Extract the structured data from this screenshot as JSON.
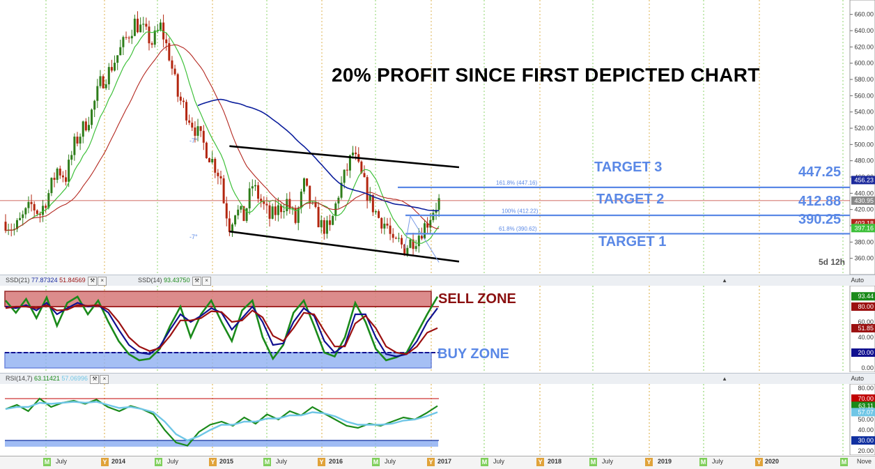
{
  "annotations": {
    "headline": "20% PROFIT SINCE FIRST DEPICTED CHART",
    "target3": "TARGET 3",
    "target2": "TARGET 2",
    "target1": "TARGET 1",
    "level3": "447.25",
    "level2": "412.88",
    "level1": "390.25",
    "fib3": "161.8% (447.16)",
    "fib2": "100% (412.22)",
    "fib1": "61.8% (390.62)",
    "angle_top": "-7°",
    "angle_bottom": "-7°",
    "timeframe": "5d 12h",
    "sell_zone": "SELL ZONE",
    "buy_zone": "BUY ZONE"
  },
  "panels": {
    "ssd21_label": "SSD(21)",
    "ssd21_v1": "77.87324",
    "ssd21_v2": "51.84569",
    "ssd14_label": "SSD(14)",
    "ssd14_v1": "93.43750",
    "rsi_label": "RSI(14,7)",
    "rsi_v1": "63.11421",
    "rsi_v2": "57.06996",
    "auto": "Auto"
  },
  "colors": {
    "candle_up": "#2e7d1a",
    "candle_down": "#b3260f",
    "ma_blue": "#0b1e9c",
    "ma_green": "#3ec03a",
    "ma_red": "#b3261e",
    "target_line": "#5a88e6",
    "target_text": "#5a88e6",
    "channel": "#000000",
    "sell_zone_fill": "#d98080",
    "buy_zone_fill": "#8fb0f2",
    "ssd_green": "#1a8a1a",
    "ssd_blue": "#10108f",
    "ssd_red": "#9b1010",
    "rsi_green": "#1a8a1a",
    "rsi_light": "#6fc6e6"
  },
  "chart_data": [
    {
      "type": "candlestick",
      "title": "",
      "xlabel": "",
      "ylabel": "",
      "ylim": [
        340,
        670
      ],
      "y_ticks": [
        360,
        380,
        400,
        420,
        440,
        460,
        480,
        500,
        520,
        540,
        560,
        580,
        600,
        620,
        640,
        660
      ],
      "y_tick_labels": [
        "360.00",
        "380.00",
        "400.00",
        "420.00",
        "440.00",
        "460.00",
        "480.00",
        "500.00",
        "520.00",
        "540.00",
        "560.00",
        "580.00",
        "600.00",
        "620.00",
        "640.00",
        "660.00"
      ],
      "x_labels": [
        {
          "label": "M",
          "badge": true,
          "color": "green"
        },
        {
          "label": "July"
        },
        {
          "label": "Y",
          "badge": true,
          "color": "orange"
        },
        {
          "label": "2014"
        },
        {
          "label": "M",
          "badge": true,
          "color": "green"
        },
        {
          "label": "July"
        },
        {
          "label": "Y",
          "badge": true,
          "color": "orange"
        },
        {
          "label": "2015"
        },
        {
          "label": "M",
          "badge": true,
          "color": "green"
        },
        {
          "label": "July"
        },
        {
          "label": "Y",
          "badge": true,
          "color": "orange"
        },
        {
          "label": "2016"
        },
        {
          "label": "M",
          "badge": true,
          "color": "green"
        },
        {
          "label": "July"
        },
        {
          "label": "Y",
          "badge": true,
          "color": "orange"
        },
        {
          "label": "2017"
        },
        {
          "label": "M",
          "badge": true,
          "color": "green"
        },
        {
          "label": "July"
        },
        {
          "label": "Y",
          "badge": true,
          "color": "orange"
        },
        {
          "label": "2018"
        },
        {
          "label": "M",
          "badge": true,
          "color": "green"
        },
        {
          "label": "July"
        },
        {
          "label": "Y",
          "badge": true,
          "color": "orange"
        },
        {
          "label": "2019"
        },
        {
          "label": "M",
          "badge": true,
          "color": "green"
        },
        {
          "label": "July"
        },
        {
          "label": "Y",
          "badge": true,
          "color": "orange"
        },
        {
          "label": "2020"
        },
        {
          "label": "M",
          "badge": true,
          "color": "green"
        },
        {
          "label": "Nove"
        }
      ],
      "key_levels": [
        {
          "label": "TARGET 3",
          "value": 447.25
        },
        {
          "label": "TARGET 2",
          "value": 412.88
        },
        {
          "label": "TARGET 1",
          "value": 390.25
        }
      ],
      "price_boxes": [
        {
          "value": "456.23",
          "color": "#1c2a9c"
        },
        {
          "value": "430.95",
          "color": "#888888"
        },
        {
          "value": "403.18",
          "color": "#b3261e"
        },
        {
          "value": "397.16",
          "color": "#3ec03a"
        }
      ],
      "horizontal_line": 430.95,
      "price_path": [
        [
          0,
          405
        ],
        [
          3,
          395
        ],
        [
          6,
          410
        ],
        [
          9,
          425
        ],
        [
          12,
          415
        ],
        [
          15,
          440
        ],
        [
          18,
          470
        ],
        [
          21,
          460
        ],
        [
          24,
          500
        ],
        [
          27,
          520
        ],
        [
          30,
          540
        ],
        [
          33,
          575
        ],
        [
          36,
          590
        ],
        [
          39,
          610
        ],
        [
          42,
          630
        ],
        [
          45,
          650
        ],
        [
          48,
          640
        ],
        [
          51,
          625
        ],
        [
          54,
          645
        ],
        [
          57,
          610
        ],
        [
          60,
          560
        ],
        [
          63,
          540
        ],
        [
          66,
          520
        ],
        [
          69,
          500
        ],
        [
          72,
          480
        ],
        [
          75,
          460
        ],
        [
          76,
          430
        ],
        [
          78,
          400
        ],
        [
          80,
          420
        ],
        [
          83,
          410
        ],
        [
          86,
          450
        ],
        [
          89,
          430
        ],
        [
          92,
          410
        ],
        [
          95,
          420
        ],
        [
          98,
          430
        ],
        [
          101,
          405
        ],
        [
          104,
          450
        ],
        [
          107,
          420
        ],
        [
          110,
          400
        ],
        [
          113,
          395
        ],
        [
          116,
          440
        ],
        [
          119,
          470
        ],
        [
          121,
          490
        ],
        [
          124,
          460
        ],
        [
          127,
          430
        ],
        [
          130,
          410
        ],
        [
          133,
          400
        ],
        [
          135,
          375
        ],
        [
          137,
          380
        ],
        [
          139,
          372
        ],
        [
          141,
          380
        ],
        [
          143,
          385
        ],
        [
          145,
          395
        ],
        [
          147,
          405
        ],
        [
          149,
          420
        ],
        [
          151,
          430
        ]
      ],
      "channel_lines": [
        {
          "from": [
            78,
            498
          ],
          "to": [
            158,
            472
          ]
        },
        {
          "from": [
            78,
            393
          ],
          "to": [
            158,
            356
          ]
        }
      ],
      "fib_labels": [
        {
          "text": "161.8% (447.16)",
          "value": 447.16
        },
        {
          "text": "100% (412.22)",
          "value": 412.22
        },
        {
          "text": "61.8% (390.62)",
          "value": 390.62
        }
      ]
    },
    {
      "type": "line",
      "title": "SSD",
      "ylim": [
        0,
        100
      ],
      "y_tick_labels": [
        "0.00",
        "20.00",
        "40.00",
        "60.00",
        "80.00"
      ],
      "zones": [
        {
          "name": "SELL ZONE",
          "from": 80,
          "to": 100
        },
        {
          "name": "BUY ZONE",
          "from": 0,
          "to": 20
        }
      ],
      "value_boxes": [
        {
          "value": "93.44",
          "color": "#1a8a1a"
        },
        {
          "value": "80.00",
          "color": "#9b1010"
        },
        {
          "value": "51.85",
          "color": "#9b1010"
        },
        {
          "value": "20.00",
          "color": "#10108f"
        }
      ],
      "series": [
        {
          "name": "SSD(14)",
          "values": [
            88,
            72,
            90,
            65,
            92,
            55,
            85,
            93,
            70,
            88,
            60,
            35,
            18,
            10,
            12,
            25,
            55,
            80,
            40,
            70,
            88,
            60,
            35,
            75,
            88,
            40,
            12,
            30,
            72,
            88,
            55,
            20,
            15,
            40,
            85,
            60,
            25,
            10,
            14,
            20,
            45,
            70,
            93
          ]
        },
        {
          "name": "SSD(21)",
          "values": [
            80,
            78,
            82,
            75,
            85,
            70,
            78,
            85,
            80,
            82,
            72,
            50,
            30,
            20,
            18,
            28,
            50,
            70,
            60,
            68,
            78,
            72,
            50,
            65,
            80,
            60,
            30,
            32,
            60,
            78,
            68,
            35,
            20,
            30,
            70,
            70,
            40,
            18,
            15,
            18,
            35,
            60,
            78
          ]
        },
        {
          "name": "SSD(21) signal",
          "values": [
            78,
            80,
            80,
            78,
            82,
            75,
            76,
            82,
            81,
            82,
            76,
            60,
            40,
            28,
            22,
            26,
            42,
            62,
            62,
            65,
            74,
            73,
            60,
            62,
            75,
            66,
            42,
            35,
            52,
            72,
            70,
            48,
            28,
            28,
            58,
            68,
            52,
            28,
            20,
            18,
            28,
            46,
            52
          ]
        }
      ]
    },
    {
      "type": "line",
      "title": "RSI(14,7)",
      "ylim": [
        20,
        80
      ],
      "y_tick_labels": [
        "20.00",
        "40.00",
        "50.00",
        "60.00",
        "80.00"
      ],
      "value_boxes": [
        {
          "value": "70.00",
          "color": "#c00000"
        },
        {
          "value": "63.11",
          "color": "#1a8a1a"
        },
        {
          "value": "57.07",
          "color": "#6fc6e6"
        },
        {
          "value": "30.00",
          "color": "#1030a0"
        }
      ],
      "reference_levels": [
        70,
        30
      ],
      "series": [
        {
          "name": "RSI",
          "values": [
            60,
            64,
            58,
            70,
            62,
            66,
            68,
            65,
            69,
            62,
            58,
            63,
            60,
            55,
            40,
            28,
            25,
            38,
            45,
            48,
            44,
            52,
            46,
            55,
            50,
            58,
            54,
            62,
            56,
            50,
            44,
            42,
            46,
            44,
            48,
            52,
            50,
            56,
            63
          ]
        },
        {
          "name": "RSI signal",
          "values": [
            60,
            62,
            62,
            66,
            65,
            66,
            67,
            66,
            67,
            64,
            61,
            62,
            60,
            57,
            48,
            36,
            30,
            34,
            40,
            45,
            45,
            48,
            48,
            51,
            51,
            54,
            54,
            57,
            56,
            53,
            48,
            45,
            45,
            45,
            46,
            49,
            50,
            53,
            57
          ]
        }
      ]
    }
  ]
}
